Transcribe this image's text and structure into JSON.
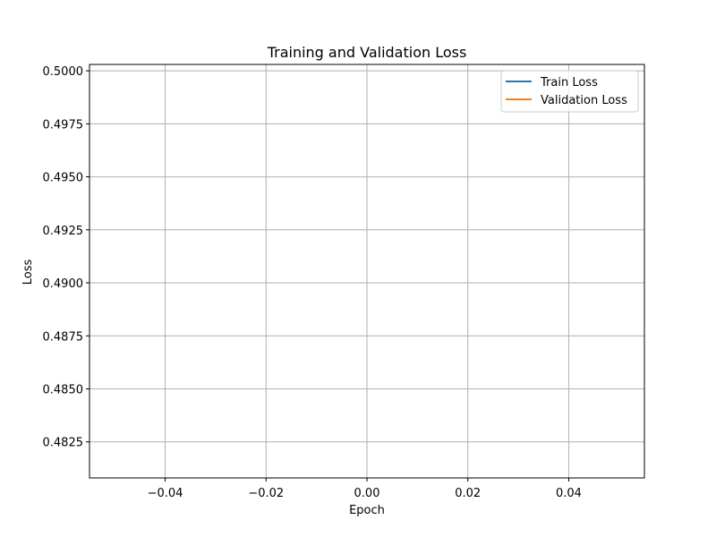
{
  "chart_data": {
    "type": "line",
    "title": "Training and Validation Loss",
    "xlabel": "Epoch",
    "ylabel": "Loss",
    "xlim": [
      -0.055,
      0.055
    ],
    "ylim": [
      0.4808,
      0.5003
    ],
    "xticks": [
      -0.04,
      -0.02,
      0.0,
      0.02,
      0.04
    ],
    "xtick_labels": [
      "−0.04",
      "−0.02",
      "0.00",
      "0.02",
      "0.04"
    ],
    "yticks": [
      0.4825,
      0.485,
      0.4875,
      0.49,
      0.4925,
      0.495,
      0.4975,
      0.5
    ],
    "ytick_labels": [
      "0.4825",
      "0.4850",
      "0.4875",
      "0.4900",
      "0.4925",
      "0.4950",
      "0.4975",
      "0.5000"
    ],
    "grid": true,
    "legend_position": "top-right",
    "series": [
      {
        "name": "Train Loss",
        "color": "#1f77b4",
        "x": [],
        "y": []
      },
      {
        "name": "Validation Loss",
        "color": "#ff7f0e",
        "x": [],
        "y": []
      }
    ]
  }
}
